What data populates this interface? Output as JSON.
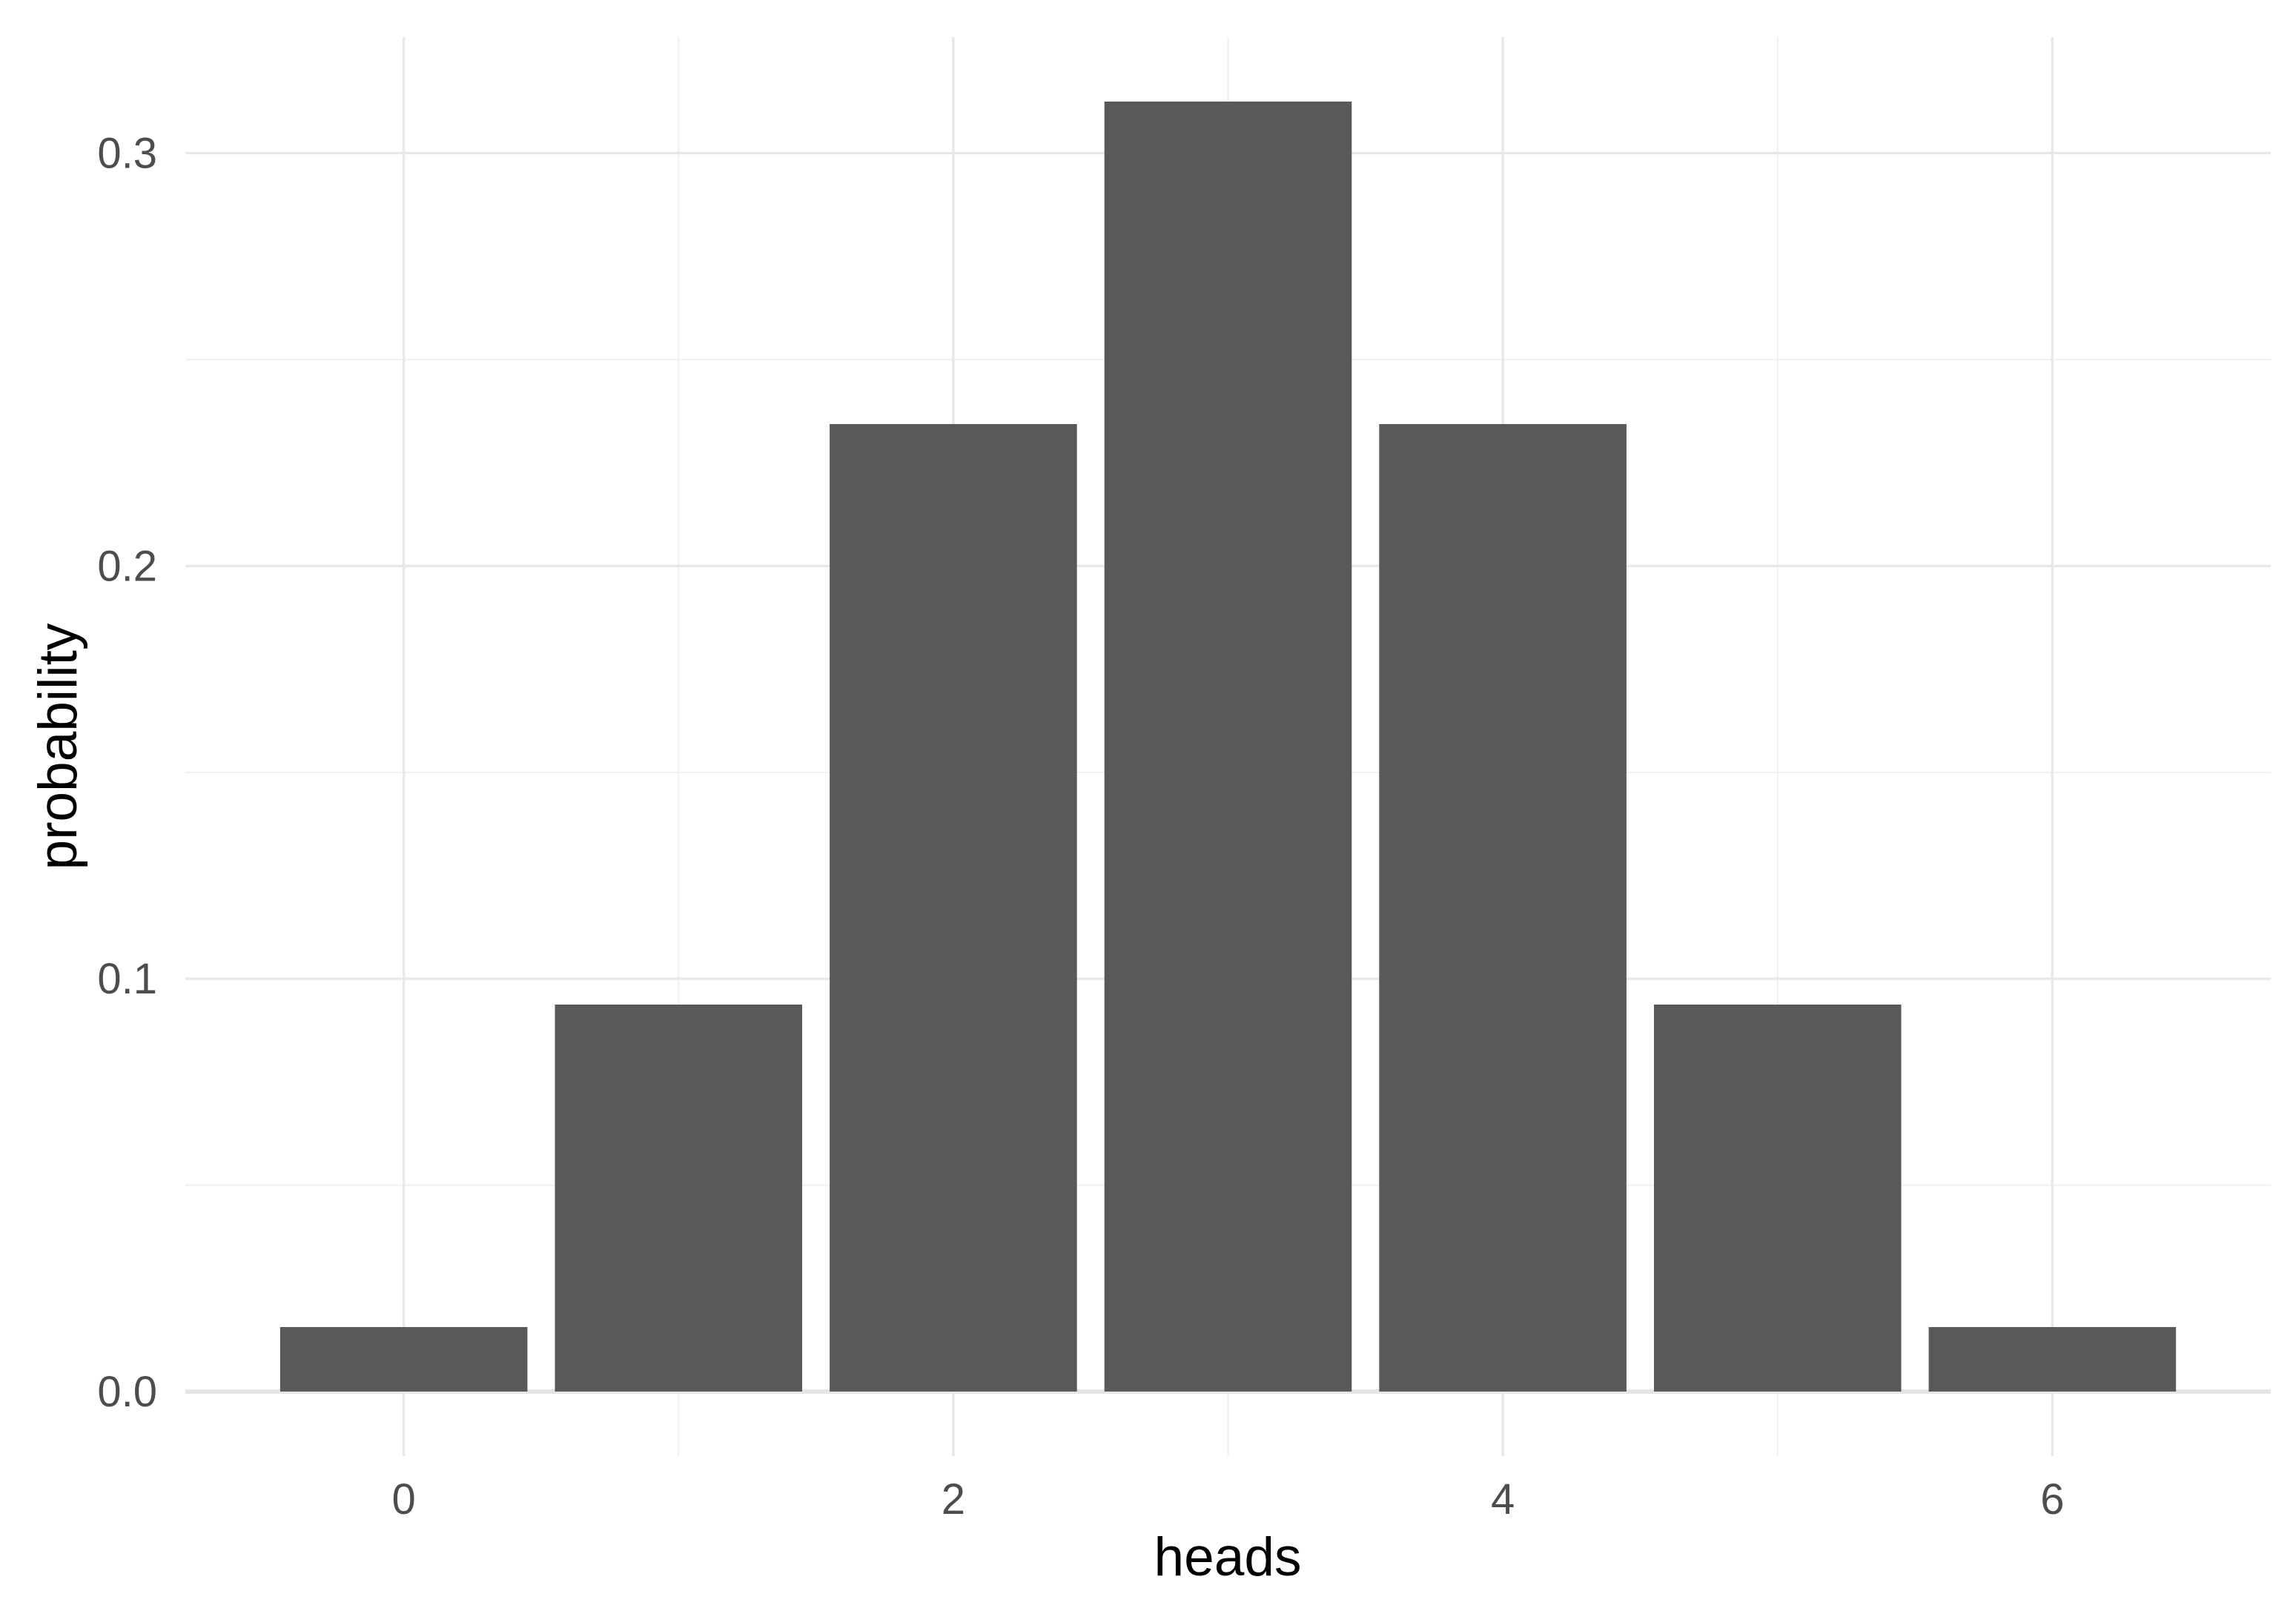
{
  "chart_data": {
    "type": "bar",
    "title": "",
    "xlabel": "heads",
    "ylabel": "probability",
    "x": [
      0,
      1,
      2,
      3,
      4,
      5,
      6
    ],
    "values": [
      0.015625,
      0.09375,
      0.234375,
      0.3125,
      0.234375,
      0.09375,
      0.015625
    ],
    "bar_width": 0.9,
    "xlim": [
      -0.795,
      6.795
    ],
    "ylim": [
      -0.015625,
      0.328125
    ],
    "x_major_ticks": [
      0,
      2,
      4,
      6
    ],
    "x_major_tick_labels": [
      "0",
      "2",
      "4",
      "6"
    ],
    "x_minor_ticks": [
      1,
      3,
      5
    ],
    "y_major_ticks": [
      0.0,
      0.1,
      0.2,
      0.3
    ],
    "y_major_tick_labels": [
      "0.0",
      "0.1",
      "0.2",
      "0.3"
    ],
    "y_minor_ticks": [
      0.05,
      0.15,
      0.25
    ],
    "grid": true,
    "legend": "none",
    "colors": {
      "bar_fill": "#595959",
      "grid_major": "#e8e8e8",
      "grid_minor": "#f1f1f1",
      "baseline": "#e5e5e5",
      "tick_text": "#4d4d4d",
      "title_text": "#000000",
      "background": "#ffffff"
    }
  }
}
